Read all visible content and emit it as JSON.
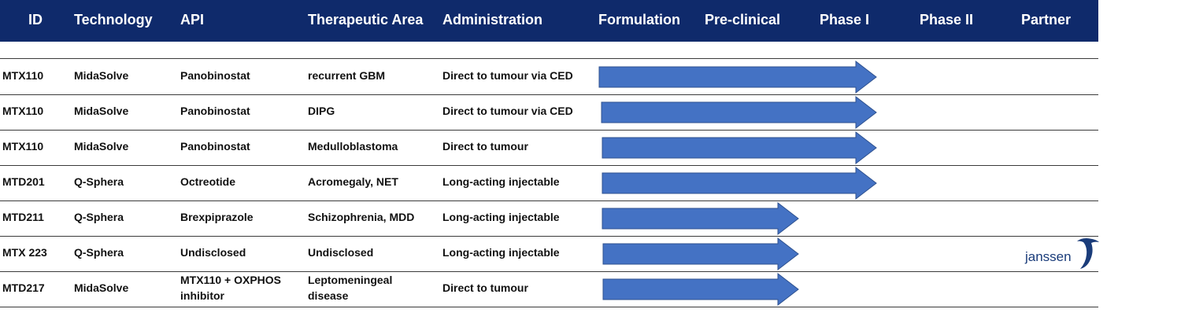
{
  "columns": [
    "ID",
    "Technology",
    "API",
    "Therapeutic Area",
    "Administration",
    "Formulation",
    "Pre-clinical",
    "Phase I",
    "Phase II",
    "Partner"
  ],
  "colors": {
    "header_bg": "#0f2a6b",
    "arrow_fill": "#4472c4",
    "arrow_stroke": "#2f528f",
    "partner_logo": "#1a3c7a"
  },
  "rows": [
    {
      "id": "MTX110",
      "technology": "MidaSolve",
      "api": [
        "Panobinostat"
      ],
      "area": [
        "recurrent GBM"
      ],
      "administration": "Direct to tumour via CED",
      "progress": "Phase I",
      "partner": ""
    },
    {
      "id": "MTX110",
      "technology": "MidaSolve",
      "api": [
        "Panobinostat"
      ],
      "area": [
        "DIPG"
      ],
      "administration": "Direct to tumour via CED",
      "progress": "Phase I",
      "partner": ""
    },
    {
      "id": "MTX110",
      "technology": "MidaSolve",
      "api": [
        "Panobinostat"
      ],
      "area": [
        "Medulloblastoma"
      ],
      "administration": "Direct to tumour",
      "progress": "Phase I",
      "partner": ""
    },
    {
      "id": "MTD201",
      "technology": "Q-Sphera",
      "api": [
        "Octreotide"
      ],
      "area": [
        "Acromegaly, NET"
      ],
      "administration": "Long-acting injectable",
      "progress": "Phase I",
      "partner": ""
    },
    {
      "id": "MTD211",
      "technology": "Q-Sphera",
      "api": [
        "Brexpiprazole"
      ],
      "area": [
        "Schizophrenia, MDD"
      ],
      "administration": "Long-acting injectable",
      "progress": "Pre-clinical",
      "partner": ""
    },
    {
      "id": "MTX 223",
      "technology": "Q-Sphera",
      "api": [
        "Undisclosed"
      ],
      "area": [
        "Undisclosed"
      ],
      "administration": "Long-acting injectable",
      "progress": "Pre-clinical",
      "partner": "janssen"
    },
    {
      "id": "MTD217",
      "technology": "MidaSolve",
      "api": [
        "MTX110 + OXPHOS",
        "inhibitor"
      ],
      "area": [
        "Leptomeningeal",
        "disease"
      ],
      "administration": "Direct to tumour",
      "progress": "Pre-clinical",
      "partner": ""
    }
  ],
  "partner_logo": {
    "icon": "janssen-logo",
    "text": "janssen"
  }
}
